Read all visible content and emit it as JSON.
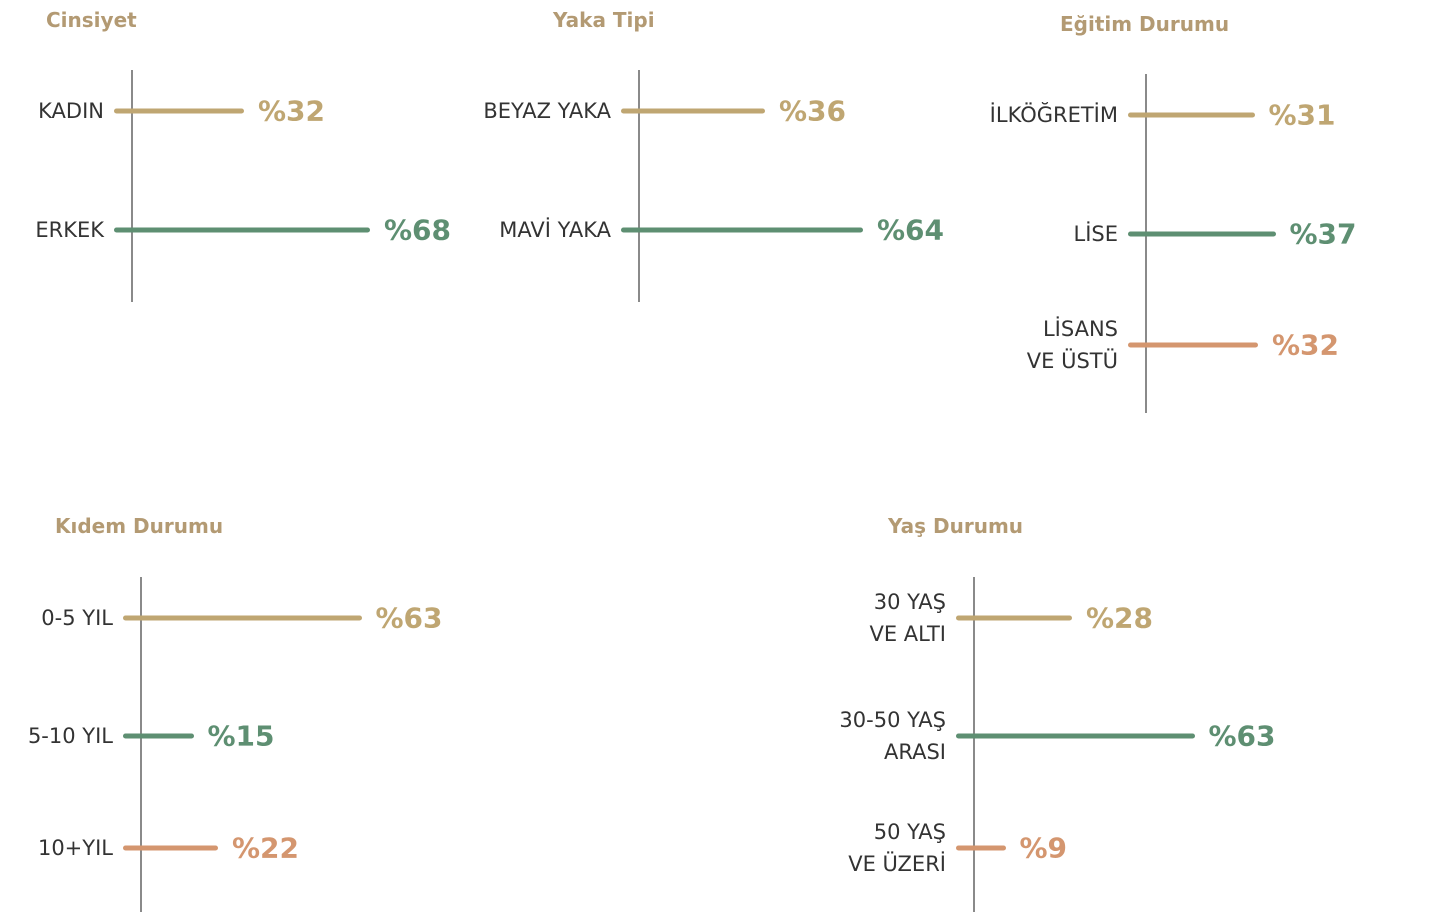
{
  "chart_data": [
    {
      "type": "bar",
      "title": "Cinsiyet",
      "categories": [
        "KADIN",
        "ERKEK"
      ],
      "values": [
        32,
        68
      ],
      "value_labels": [
        "%32",
        "%68"
      ],
      "colors": [
        "#bfa672",
        "#5e8f72"
      ]
    },
    {
      "type": "bar",
      "title": "Yaka Tipi",
      "categories": [
        "BEYAZ YAKA",
        "MAVİ YAKA"
      ],
      "values": [
        36,
        64
      ],
      "value_labels": [
        "%36",
        "%64"
      ],
      "colors": [
        "#bfa672",
        "#5e8f72"
      ]
    },
    {
      "type": "bar",
      "title": "Eğitim Durumu",
      "categories": [
        "İLKÖĞRETİM",
        "LİSE",
        "LİSANS\nVE ÜSTÜ"
      ],
      "values": [
        31,
        37,
        32
      ],
      "value_labels": [
        "%31",
        "%37",
        "%32"
      ],
      "colors": [
        "#bfa672",
        "#5e8f72",
        "#d4966f"
      ]
    },
    {
      "type": "bar",
      "title": "Kıdem Durumu",
      "categories": [
        "0-5 YIL",
        "5-10 YIL",
        "10+YIL"
      ],
      "values": [
        63,
        15,
        22
      ],
      "value_labels": [
        "%63",
        "%15",
        "%22"
      ],
      "colors": [
        "#bfa672",
        "#5e8f72",
        "#d4966f"
      ]
    },
    {
      "type": "bar",
      "title": "Yaş Durumu",
      "categories": [
        "30 YAŞ\nVE ALTI",
        "30-50 YAŞ\nARASI",
        "50 YAŞ\nVE ÜZERİ"
      ],
      "values": [
        28,
        63,
        9
      ],
      "value_labels": [
        "%28",
        "%63",
        "%9"
      ],
      "colors": [
        "#bfa672",
        "#5e8f72",
        "#d4966f"
      ]
    }
  ]
}
